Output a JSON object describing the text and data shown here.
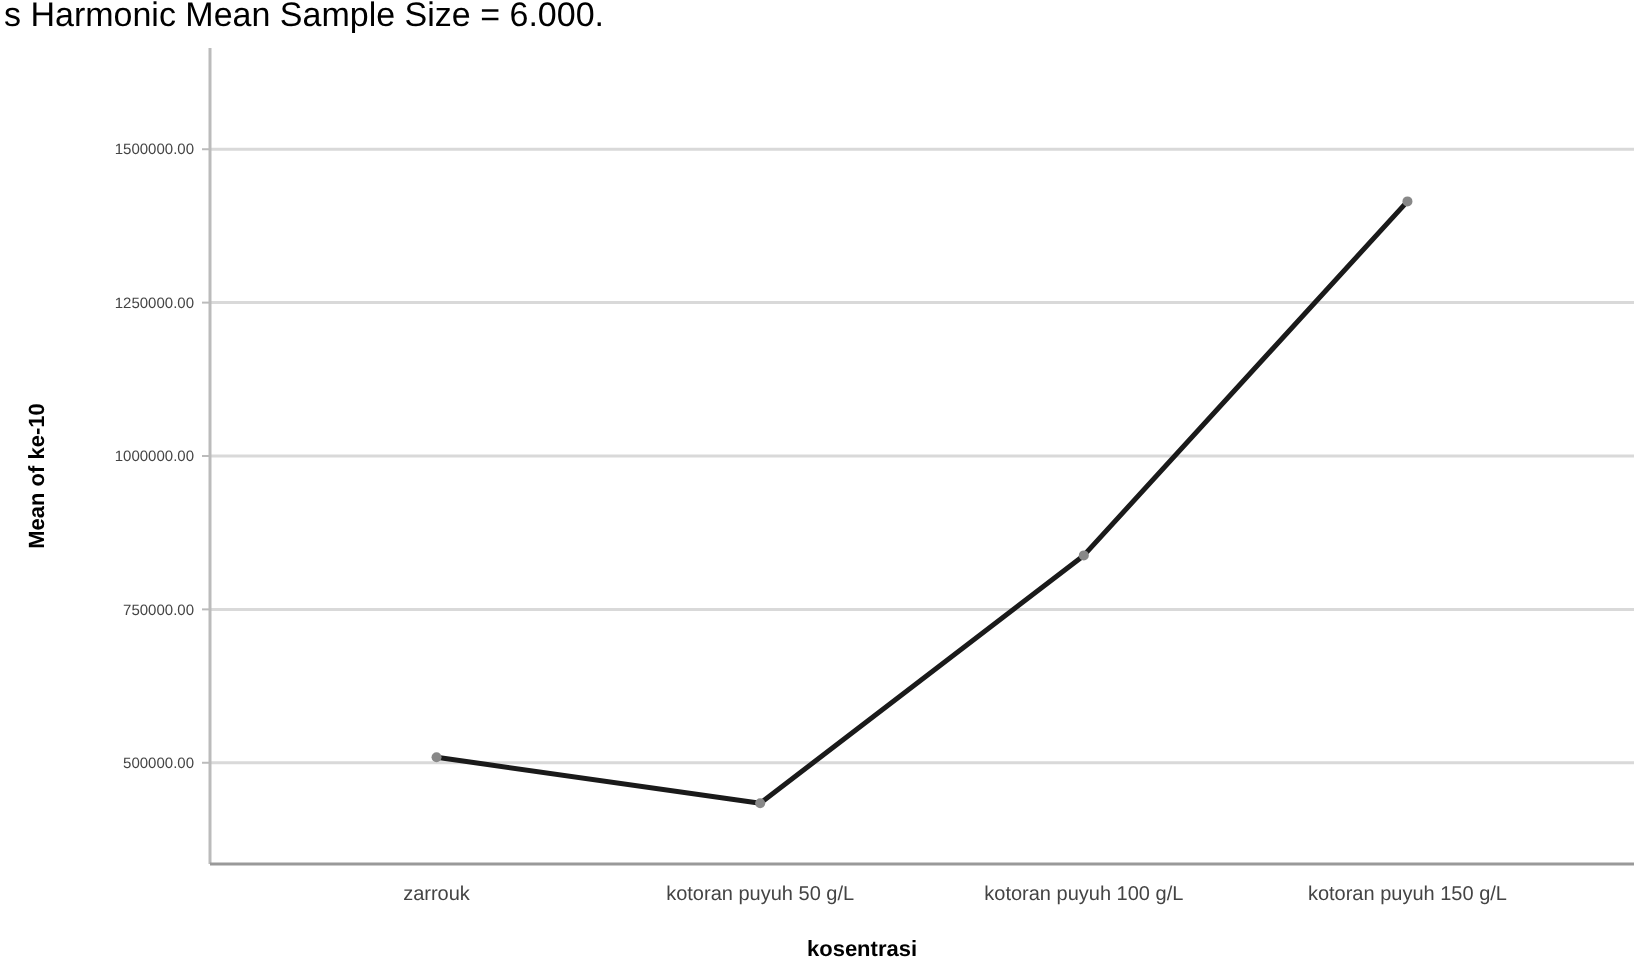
{
  "chart_data": {
    "type": "line",
    "xlabel": "kosentrasi",
    "ylabel": "Mean of ke-10",
    "annotations": [
      "s Harmonic Mean Sample Size = 6.000."
    ],
    "categories": [
      "zarrouk",
      "kotoran puyuh 50 g/L",
      "kotoran puyuh 100 g/L",
      "kotoran puyuh 150 g/L"
    ],
    "series": [
      {
        "color": "#1a1a1a",
        "values": [
          509000,
          434000,
          838000,
          1415000
        ]
      }
    ],
    "ylim": [
      335000,
      1665000
    ],
    "yticks": [
      {
        "value": 500000,
        "label": "500000.00"
      },
      {
        "value": 750000,
        "label": "750000.00"
      },
      {
        "value": 1000000,
        "label": "1000000.00"
      },
      {
        "value": 1250000,
        "label": "1250000.00"
      },
      {
        "value": 1500000,
        "label": "1500000.00"
      }
    ],
    "grid": "y",
    "marker": "circle",
    "line_style": "solid"
  }
}
